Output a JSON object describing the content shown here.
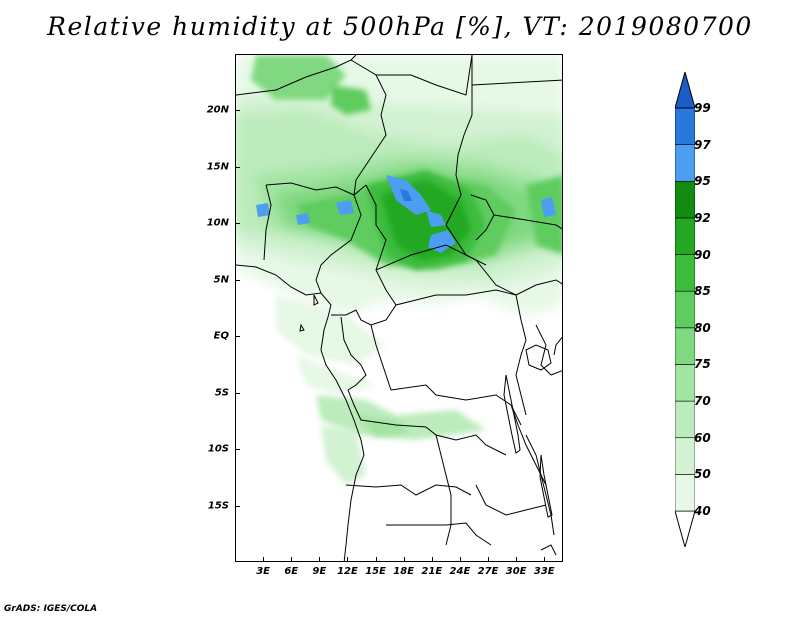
{
  "title": "Relative humidity at 500hPa [%], VT: 2019080700",
  "credit": "GrADS: IGES/COLA",
  "map": {
    "lat_labels": [
      "20N",
      "15N",
      "10N",
      "5N",
      "EQ",
      "5S",
      "10S",
      "15S"
    ],
    "lat_values": [
      20,
      15,
      10,
      5,
      0,
      -5,
      -10,
      -15
    ],
    "lon_labels": [
      "3E",
      "6E",
      "9E",
      "12E",
      "15E",
      "18E",
      "21E",
      "24E",
      "27E",
      "30E",
      "33E"
    ],
    "lon_values": [
      3,
      6,
      9,
      12,
      15,
      18,
      21,
      24,
      27,
      30,
      33
    ],
    "lon_range": [
      0,
      35
    ],
    "lat_range": [
      -20,
      25
    ]
  },
  "colorbar": {
    "levels": [
      "40",
      "50",
      "60",
      "70",
      "75",
      "80",
      "85",
      "90",
      "92",
      "95",
      "97",
      "99"
    ],
    "colors": [
      "#ffffff",
      "#e6f8e6",
      "#d2f2d2",
      "#bcebbc",
      "#a2e4a2",
      "#80d880",
      "#5fcc5f",
      "#3cbc3c",
      "#22a822",
      "#118c11",
      "#4b9ef0",
      "#2a78de",
      "#1a5cc8"
    ]
  }
}
